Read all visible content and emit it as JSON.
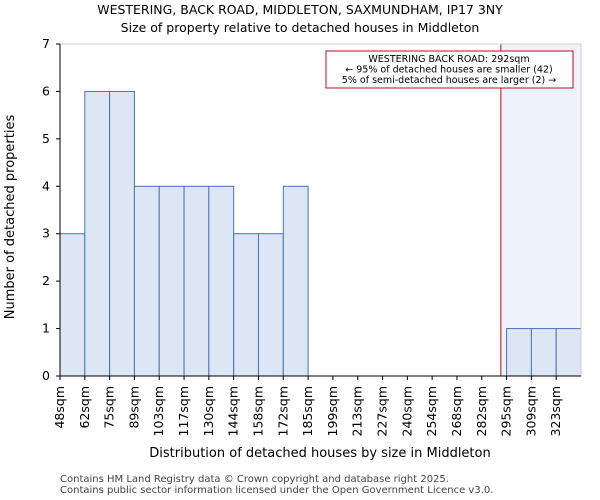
{
  "header": {
    "title": "WESTERING, BACK ROAD, MIDDLETON, SAXMUNDHAM, IP17 3NY",
    "subtitle": "Size of property relative to detached houses in Middleton"
  },
  "footer": {
    "line1": "Contains HM Land Registry data © Crown copyright and database right 2025.",
    "line2": "Contains public sector information licensed under the Open Government Licence v3.0."
  },
  "chart_data": {
    "type": "bar",
    "title": "Size of property relative to detached houses in Middleton",
    "xlabel": "Distribution of detached houses by size in Middleton",
    "ylabel": "Number of detached properties",
    "categories": [
      "48sqm",
      "62sqm",
      "75sqm",
      "89sqm",
      "103sqm",
      "117sqm",
      "130sqm",
      "144sqm",
      "158sqm",
      "172sqm",
      "185sqm",
      "199sqm",
      "213sqm",
      "227sqm",
      "240sqm",
      "254sqm",
      "268sqm",
      "282sqm",
      "295sqm",
      "309sqm",
      "323sqm"
    ],
    "values": [
      3,
      6,
      6,
      4,
      4,
      4,
      4,
      3,
      3,
      4,
      0,
      0,
      0,
      0,
      0,
      0,
      0,
      0,
      1,
      1,
      1
    ],
    "ylim": [
      0,
      7
    ],
    "yticks": [
      0,
      1,
      2,
      3,
      4,
      5,
      6,
      7
    ],
    "marker": {
      "value": 292,
      "label": "WESTERING BACK ROAD: 292sqm",
      "color": "#b0101e"
    },
    "annotation": {
      "line1": "WESTERING BACK ROAD: 292sqm",
      "line2": "← 95% of detached houses are smaller (42)",
      "line3": "5% of semi-detached houses are larger (2) →"
    },
    "bar_color": "#dce6f4",
    "bar_edge": "#4a72b8",
    "highlight_color": "#eef3fb"
  }
}
